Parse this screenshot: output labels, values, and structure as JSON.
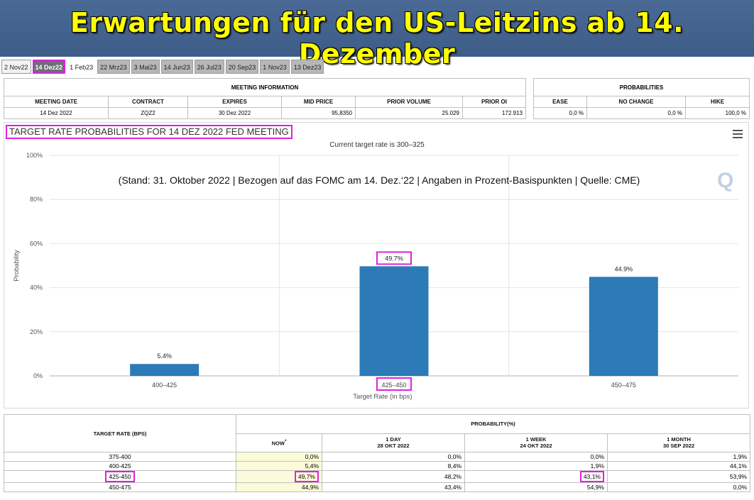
{
  "banner": {
    "title": "Erwartungen für den US-Leitzins ab 14. Dezember"
  },
  "tabs": [
    {
      "label": "2 Nov22"
    },
    {
      "label": "14 Dez22"
    },
    {
      "label": "1 Feb23"
    },
    {
      "label": "22 Mrz23"
    },
    {
      "label": "3 Mai23"
    },
    {
      "label": "14 Jun23"
    },
    {
      "label": "26 Jul23"
    },
    {
      "label": "20 Sep23"
    },
    {
      "label": "1 Nov23"
    },
    {
      "label": "13 Dez23"
    }
  ],
  "meeting_info": {
    "section_title": "MEETING INFORMATION",
    "headers": [
      "MEETING DATE",
      "CONTRACT",
      "EXPIRES",
      "MID PRICE",
      "PRIOR VOLUME",
      "PRIOR OI"
    ],
    "values": [
      "14 Dez 2022",
      "ZQZ2",
      "30 Dez 2022",
      "95,8350",
      "25.029",
      "172.913"
    ]
  },
  "probabilities": {
    "section_title": "PROBABILITIES",
    "headers": [
      "EASE",
      "NO CHANGE",
      "HIKE"
    ],
    "values": [
      "0,0 %",
      "0,0 %",
      "100,0 %"
    ]
  },
  "chart": {
    "title": "TARGET RATE PROBABILITIES FOR 14 DEZ 2022 FED MEETING",
    "subtitle": "Current target rate is 300–325",
    "annotation": "(Stand: 31. Oktober 2022 | Bezogen auf das FOMC am 14. Dez.‘22 | Angaben in Prozent-Basispunkten | Quelle: CME)",
    "watermark": "Q"
  },
  "chart_data": {
    "type": "bar",
    "categories": [
      "400–425",
      "425–450",
      "450–475"
    ],
    "values": [
      5.4,
      49.7,
      44.9
    ],
    "data_labels": [
      "5.4%",
      "49.7%",
      "44.9%"
    ],
    "xlabel": "Target Rate (in bps)",
    "ylabel": "Probability",
    "ylim": [
      0,
      100
    ],
    "yticks": [
      "0%",
      "20%",
      "40%",
      "60%",
      "80%",
      "100%"
    ],
    "bar_color": "#2c7bb6",
    "grid": true,
    "highlight_color": "#e01fe0"
  },
  "bottom_table": {
    "target_rate_header": "TARGET RATE (BPS)",
    "probability_header": "PROBABILITY(%)",
    "now_header": "NOW",
    "now_marker": "*",
    "col1_header": "1 DAY",
    "col1_date": "28 OKT 2022",
    "col2_header": "1 WEEK",
    "col2_date": "24 OKT 2022",
    "col3_header": "1 MONTH",
    "col3_date": "30 SEP 2022",
    "rows": [
      {
        "rate": "375-400",
        "now": "0,0%",
        "day": "0,0%",
        "week": "0,0%",
        "month": "1,9%"
      },
      {
        "rate": "400-425",
        "now": "5,4%",
        "day": "8,4%",
        "week": "1,9%",
        "month": "44,1%"
      },
      {
        "rate": "425-450",
        "now": "49,7%",
        "day": "48,2%",
        "week": "43,1%",
        "month": "53,9%"
      },
      {
        "rate": "450-475",
        "now": "44,9%",
        "day": "43,4%",
        "week": "54,9%",
        "month": "0,0%"
      }
    ]
  }
}
